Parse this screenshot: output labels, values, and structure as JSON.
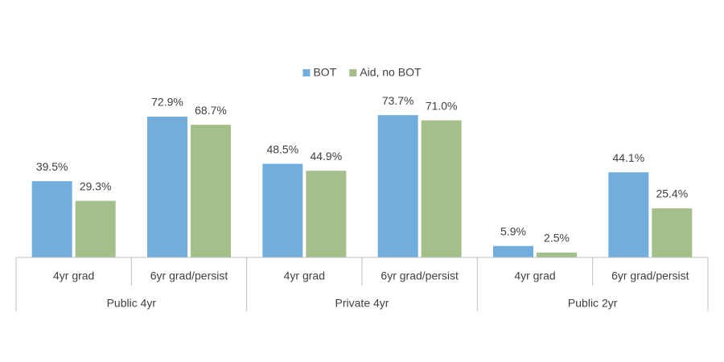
{
  "chart_data": {
    "type": "bar",
    "categories": [
      "4yr grad",
      "6yr grad/persist",
      "4yr grad",
      "6yr grad/persist",
      "4yr grad",
      "6yr grad/persist"
    ],
    "groups": [
      "Public 4yr",
      "Private 4yr",
      "Public 2yr"
    ],
    "series": [
      {
        "name": "BOT",
        "color": "#71aedd",
        "values": [
          39.5,
          72.9,
          48.5,
          73.7,
          5.9,
          44.1
        ],
        "value_labels": [
          "39.5%",
          "72.9%",
          "48.5%",
          "73.7%",
          "5.9%",
          "44.1%"
        ]
      },
      {
        "name": "Aid, no BOT",
        "color": "#a5bf8b",
        "values": [
          29.3,
          68.7,
          44.9,
          71.0,
          2.5,
          25.4
        ],
        "value_labels": [
          "29.3%",
          "68.7%",
          "44.9%",
          "71.0%",
          "2.5%",
          "25.4%"
        ]
      }
    ],
    "legend": "top"
  }
}
